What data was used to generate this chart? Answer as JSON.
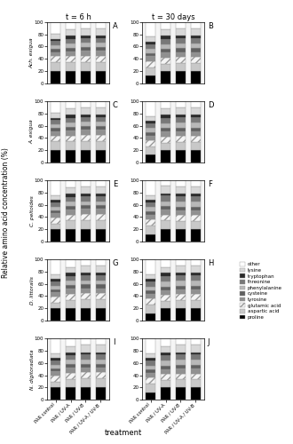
{
  "row_labels": [
    "Ach. exigua",
    "A. exigua",
    "C. peltoides",
    "D. littoralis",
    "N. digitoradiata"
  ],
  "panel_labels_left": [
    "A",
    "C",
    "E",
    "G",
    "I"
  ],
  "panel_labels_right": [
    "B",
    "D",
    "F",
    "H",
    "J"
  ],
  "col_titles": [
    "t = 6 h",
    "t = 30 days"
  ],
  "x_labels": [
    "PAR control",
    "PAR / UV-A",
    "PAR / UV-B",
    "PAR / UV-A / UV-B"
  ],
  "y_label": "Relative amino acid concentration (%)",
  "x_axis_label": "treatment",
  "legend_labels_top_to_bottom": [
    "other",
    "lysine",
    "tryptophan",
    "threonine",
    "phenylalanine",
    "cysteine",
    "tyrosine",
    "glutamic acid",
    "aspartic acid",
    "proline"
  ],
  "colors_bottom_to_top": [
    "#000000",
    "#c8c8c8",
    "#f2f2f2",
    "#909090",
    "#606060",
    "#b8b8b8",
    "#787878",
    "#2a2a2a",
    "#d8d8d8",
    "#ffffff"
  ],
  "glutamic_acid_index": 2,
  "panels_data": {
    "A": [
      [
        20,
        14,
        10,
        7,
        5,
        6,
        7,
        4,
        8,
        19
      ],
      [
        20,
        14,
        10,
        8,
        6,
        7,
        8,
        5,
        10,
        12
      ],
      [
        20,
        15,
        10,
        8,
        6,
        7,
        8,
        4,
        12,
        10
      ],
      [
        20,
        15,
        10,
        8,
        6,
        7,
        8,
        4,
        12,
        10
      ]
    ],
    "B": [
      [
        12,
        14,
        10,
        8,
        5,
        7,
        8,
        4,
        8,
        24
      ],
      [
        20,
        12,
        10,
        8,
        6,
        8,
        9,
        5,
        10,
        12
      ],
      [
        20,
        13,
        10,
        8,
        6,
        8,
        9,
        4,
        12,
        10
      ],
      [
        20,
        13,
        10,
        8,
        6,
        8,
        9,
        4,
        12,
        10
      ]
    ],
    "C": [
      [
        20,
        14,
        10,
        7,
        5,
        6,
        7,
        4,
        8,
        19
      ],
      [
        20,
        14,
        10,
        8,
        6,
        7,
        8,
        5,
        10,
        12
      ],
      [
        20,
        15,
        10,
        8,
        6,
        7,
        8,
        4,
        12,
        10
      ],
      [
        20,
        15,
        10,
        8,
        6,
        7,
        8,
        4,
        12,
        10
      ]
    ],
    "D": [
      [
        12,
        14,
        10,
        8,
        5,
        7,
        8,
        4,
        8,
        24
      ],
      [
        20,
        12,
        10,
        8,
        6,
        8,
        9,
        5,
        10,
        12
      ],
      [
        20,
        13,
        10,
        8,
        6,
        8,
        9,
        4,
        12,
        10
      ],
      [
        20,
        13,
        10,
        8,
        6,
        8,
        9,
        4,
        12,
        10
      ]
    ],
    "E": [
      [
        20,
        9,
        10,
        7,
        5,
        6,
        7,
        4,
        8,
        24
      ],
      [
        20,
        14,
        10,
        8,
        6,
        7,
        8,
        5,
        10,
        12
      ],
      [
        20,
        15,
        10,
        8,
        6,
        7,
        8,
        4,
        12,
        10
      ],
      [
        20,
        15,
        10,
        8,
        6,
        7,
        8,
        4,
        12,
        10
      ]
    ],
    "F": [
      [
        12,
        14,
        10,
        8,
        5,
        7,
        8,
        4,
        8,
        24
      ],
      [
        20,
        14,
        10,
        8,
        6,
        8,
        9,
        4,
        12,
        9
      ],
      [
        20,
        13,
        10,
        8,
        6,
        8,
        9,
        4,
        12,
        10
      ],
      [
        20,
        13,
        10,
        8,
        6,
        8,
        9,
        4,
        12,
        10
      ]
    ],
    "G": [
      [
        20,
        9,
        10,
        7,
        5,
        6,
        7,
        4,
        8,
        24
      ],
      [
        20,
        14,
        10,
        8,
        6,
        7,
        8,
        5,
        10,
        12
      ],
      [
        20,
        15,
        10,
        8,
        6,
        7,
        8,
        4,
        12,
        10
      ],
      [
        20,
        15,
        10,
        8,
        6,
        7,
        8,
        4,
        12,
        10
      ]
    ],
    "H": [
      [
        12,
        14,
        10,
        8,
        5,
        7,
        8,
        4,
        8,
        24
      ],
      [
        20,
        12,
        10,
        8,
        6,
        8,
        9,
        5,
        10,
        12
      ],
      [
        20,
        13,
        10,
        8,
        6,
        8,
        9,
        4,
        12,
        10
      ],
      [
        20,
        13,
        10,
        8,
        6,
        8,
        9,
        4,
        12,
        10
      ]
    ],
    "I": [
      [
        20,
        9,
        10,
        7,
        5,
        6,
        7,
        4,
        8,
        24
      ],
      [
        20,
        14,
        10,
        8,
        6,
        7,
        8,
        5,
        10,
        12
      ],
      [
        20,
        15,
        10,
        8,
        6,
        7,
        8,
        4,
        12,
        10
      ],
      [
        20,
        15,
        10,
        8,
        6,
        7,
        8,
        4,
        12,
        10
      ]
    ],
    "J": [
      [
        12,
        14,
        10,
        8,
        5,
        7,
        8,
        4,
        8,
        24
      ],
      [
        20,
        12,
        10,
        8,
        6,
        8,
        9,
        5,
        10,
        12
      ],
      [
        20,
        13,
        10,
        8,
        6,
        8,
        9,
        4,
        12,
        10
      ],
      [
        20,
        13,
        10,
        8,
        6,
        8,
        9,
        4,
        12,
        10
      ]
    ]
  }
}
